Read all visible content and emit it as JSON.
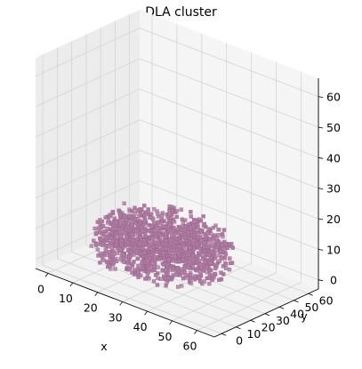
{
  "chart_data": {
    "type": "scatter",
    "projection": "3d",
    "title": "DLA cluster",
    "xlabel": "x",
    "ylabel": "y",
    "zlabel": "",
    "xlim": [
      -5,
      67
    ],
    "ylim": [
      -5,
      67
    ],
    "zlim": [
      -3,
      66
    ],
    "xticks": [
      0,
      10,
      20,
      30,
      40,
      50,
      60
    ],
    "yticks": [
      0,
      10,
      20,
      30,
      40,
      50,
      60
    ],
    "zticks": [
      0,
      10,
      20,
      30,
      40,
      50,
      60
    ],
    "grid": true,
    "marker_color": "#b07aa1",
    "cluster": {
      "description_free": true,
      "x_range": [
        2,
        46
      ],
      "y_range": [
        8,
        58
      ],
      "z_range": [
        0,
        10
      ]
    }
  }
}
